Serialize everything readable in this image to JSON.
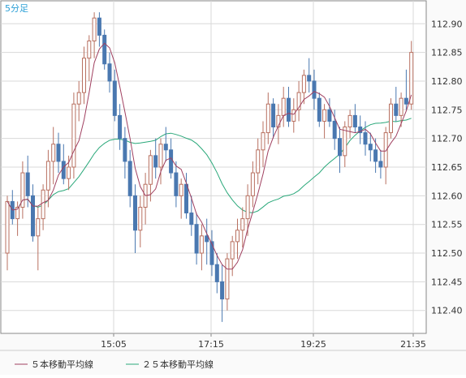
{
  "chart_data": {
    "type": "candlestick",
    "timeframe_label": "5分足",
    "x_ticks": [
      "15:05",
      "17:15",
      "19:25",
      "21:35"
    ],
    "y_ticks": [
      "112.90",
      "112.85",
      "112.80",
      "112.75",
      "112.70",
      "112.65",
      "112.60",
      "112.55",
      "112.50",
      "112.45",
      "112.40"
    ],
    "y_range": [
      112.36,
      112.94
    ],
    "legend": [
      {
        "label": "５本移動平均線",
        "color": "#a04060"
      },
      {
        "label": "２５本移動平均線",
        "color": "#2aa87a"
      }
    ],
    "colors": {
      "up": "#b87060",
      "down": "#4a78b0",
      "grid": "#d8d8d8",
      "axis": "#888888"
    },
    "candles": [
      [
        112.5,
        112.6,
        112.47,
        112.59
      ],
      [
        112.59,
        112.61,
        112.55,
        112.56
      ],
      [
        112.56,
        112.59,
        112.53,
        112.58
      ],
      [
        112.58,
        112.66,
        112.56,
        112.64
      ],
      [
        112.64,
        112.67,
        112.58,
        112.6
      ],
      [
        112.6,
        112.62,
        112.52,
        112.53
      ],
      [
        112.53,
        112.58,
        112.47,
        112.56
      ],
      [
        112.56,
        112.62,
        112.54,
        112.61
      ],
      [
        112.61,
        112.68,
        112.58,
        112.66
      ],
      [
        112.66,
        112.72,
        112.62,
        112.69
      ],
      [
        112.69,
        112.71,
        112.64,
        112.66
      ],
      [
        112.66,
        112.69,
        112.62,
        112.63
      ],
      [
        112.63,
        112.67,
        112.61,
        112.65
      ],
      [
        112.65,
        112.78,
        112.63,
        112.76
      ],
      [
        112.76,
        112.8,
        112.73,
        112.78
      ],
      [
        112.78,
        112.86,
        112.76,
        112.84
      ],
      [
        112.84,
        112.88,
        112.8,
        112.87
      ],
      [
        112.87,
        112.92,
        112.84,
        112.91
      ],
      [
        112.91,
        112.92,
        112.86,
        112.88
      ],
      [
        112.88,
        112.89,
        112.82,
        112.83
      ],
      [
        112.83,
        112.85,
        112.78,
        112.8
      ],
      [
        112.8,
        112.82,
        112.73,
        112.74
      ],
      [
        112.74,
        112.76,
        112.68,
        112.7
      ],
      [
        112.7,
        112.72,
        112.63,
        112.66
      ],
      [
        112.66,
        112.68,
        112.58,
        112.6
      ],
      [
        112.6,
        112.62,
        112.5,
        112.54
      ],
      [
        112.54,
        112.6,
        112.51,
        112.58
      ],
      [
        112.58,
        112.64,
        112.55,
        112.62
      ],
      [
        112.62,
        112.68,
        112.59,
        112.67
      ],
      [
        112.67,
        112.7,
        112.63,
        112.65
      ],
      [
        112.65,
        112.7,
        112.62,
        112.69
      ],
      [
        112.69,
        112.72,
        112.66,
        112.68
      ],
      [
        112.68,
        112.7,
        112.63,
        112.64
      ],
      [
        112.64,
        112.66,
        112.58,
        112.6
      ],
      [
        112.6,
        112.63,
        112.56,
        112.62
      ],
      [
        112.62,
        112.64,
        112.56,
        112.57
      ],
      [
        112.57,
        112.6,
        112.53,
        112.55
      ],
      [
        112.55,
        112.57,
        112.48,
        112.5
      ],
      [
        112.5,
        112.55,
        112.47,
        112.53
      ],
      [
        112.53,
        112.56,
        112.48,
        112.52
      ],
      [
        112.52,
        112.54,
        112.46,
        112.48
      ],
      [
        112.48,
        112.5,
        112.43,
        112.45
      ],
      [
        112.45,
        112.48,
        112.38,
        112.42
      ],
      [
        112.42,
        112.5,
        112.4,
        112.49
      ],
      [
        112.49,
        112.53,
        112.46,
        112.52
      ],
      [
        112.52,
        112.56,
        112.49,
        112.54
      ],
      [
        112.54,
        112.58,
        112.51,
        112.56
      ],
      [
        112.56,
        112.62,
        112.53,
        112.6
      ],
      [
        112.6,
        112.66,
        112.58,
        112.64
      ],
      [
        112.64,
        112.7,
        112.62,
        112.68
      ],
      [
        112.68,
        112.73,
        112.65,
        112.71
      ],
      [
        112.71,
        112.78,
        112.69,
        112.76
      ],
      [
        112.76,
        112.77,
        112.7,
        112.72
      ],
      [
        112.72,
        112.76,
        112.69,
        112.74
      ],
      [
        112.74,
        112.79,
        112.72,
        112.77
      ],
      [
        112.77,
        112.79,
        112.72,
        112.73
      ],
      [
        112.73,
        112.77,
        112.71,
        112.75
      ],
      [
        112.75,
        112.8,
        112.73,
        112.78
      ],
      [
        112.78,
        112.82,
        112.76,
        112.81
      ],
      [
        112.81,
        112.84,
        112.78,
        112.8
      ],
      [
        112.8,
        112.82,
        112.75,
        112.77
      ],
      [
        112.77,
        112.78,
        112.72,
        112.73
      ],
      [
        112.73,
        112.76,
        112.7,
        112.75
      ],
      [
        112.75,
        112.77,
        112.72,
        112.73
      ],
      [
        112.73,
        112.75,
        112.68,
        112.7
      ],
      [
        112.7,
        112.72,
        112.64,
        112.67
      ],
      [
        112.67,
        112.73,
        112.65,
        112.72
      ],
      [
        112.72,
        112.75,
        112.7,
        112.74
      ],
      [
        112.74,
        112.76,
        112.71,
        112.72
      ],
      [
        112.72,
        112.74,
        112.69,
        112.71
      ],
      [
        112.71,
        112.73,
        112.67,
        112.69
      ],
      [
        112.69,
        112.71,
        112.66,
        112.68
      ],
      [
        112.68,
        112.7,
        112.64,
        112.66
      ],
      [
        112.66,
        112.68,
        112.63,
        112.65
      ],
      [
        112.65,
        112.72,
        112.62,
        112.71
      ],
      [
        112.71,
        112.77,
        112.7,
        112.76
      ],
      [
        112.76,
        112.79,
        112.73,
        112.74
      ],
      [
        112.74,
        112.78,
        112.72,
        112.77
      ],
      [
        112.77,
        112.82,
        112.75,
        112.76
      ],
      [
        112.76,
        112.87,
        112.75,
        112.85
      ]
    ]
  }
}
